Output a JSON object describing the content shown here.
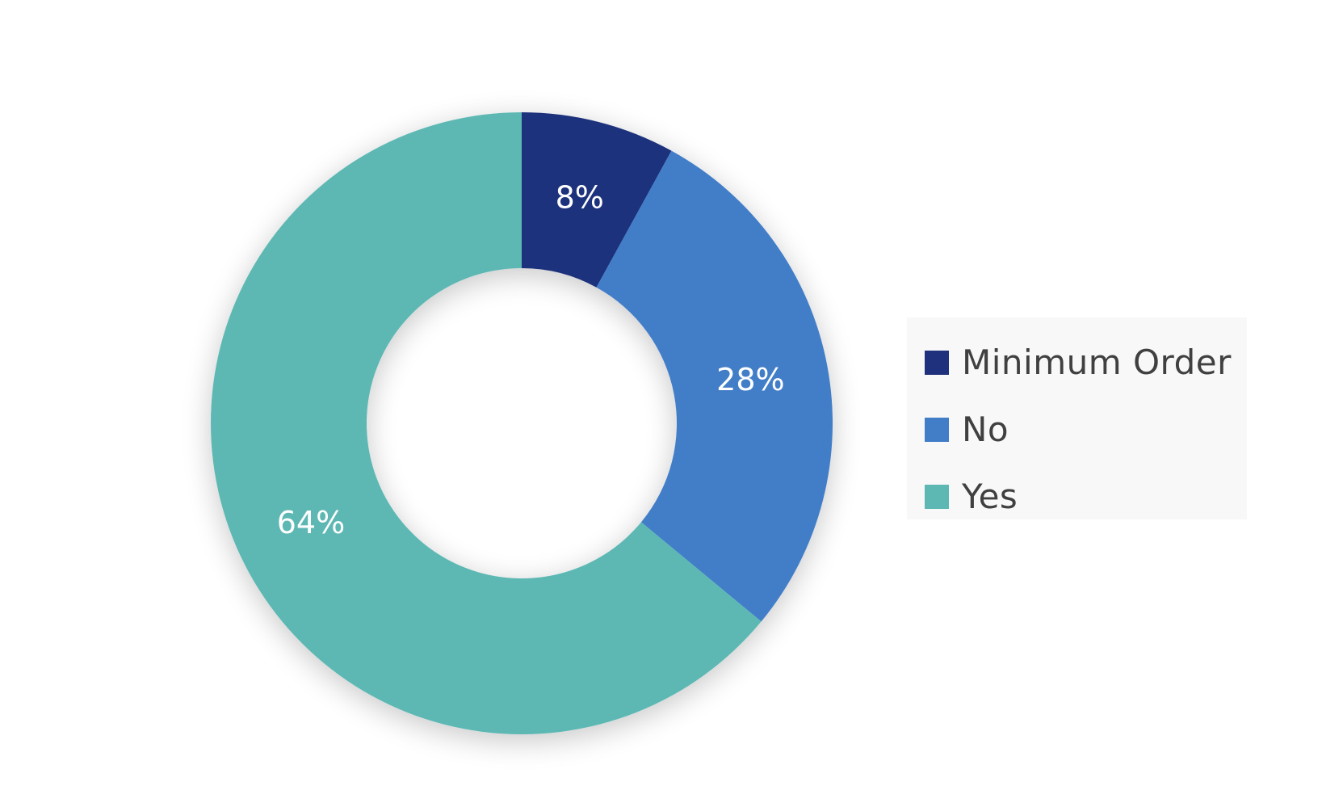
{
  "chart_data": {
    "type": "pie",
    "variant": "donut",
    "title": "",
    "categories": [
      "Minimum Order",
      "No",
      "Yes"
    ],
    "values": [
      8,
      28,
      64
    ],
    "unit": "%",
    "data_labels": [
      "8%",
      "28%",
      "64%"
    ],
    "colors": [
      "#1f317c",
      "#427ec8",
      "#5db8b4"
    ],
    "legend": {
      "position": "right",
      "items": [
        {
          "label": "Minimum Order",
          "color": "#1f317c"
        },
        {
          "label": "No",
          "color": "#427ec8"
        },
        {
          "label": "Yes",
          "color": "#5db8b4"
        }
      ]
    }
  }
}
